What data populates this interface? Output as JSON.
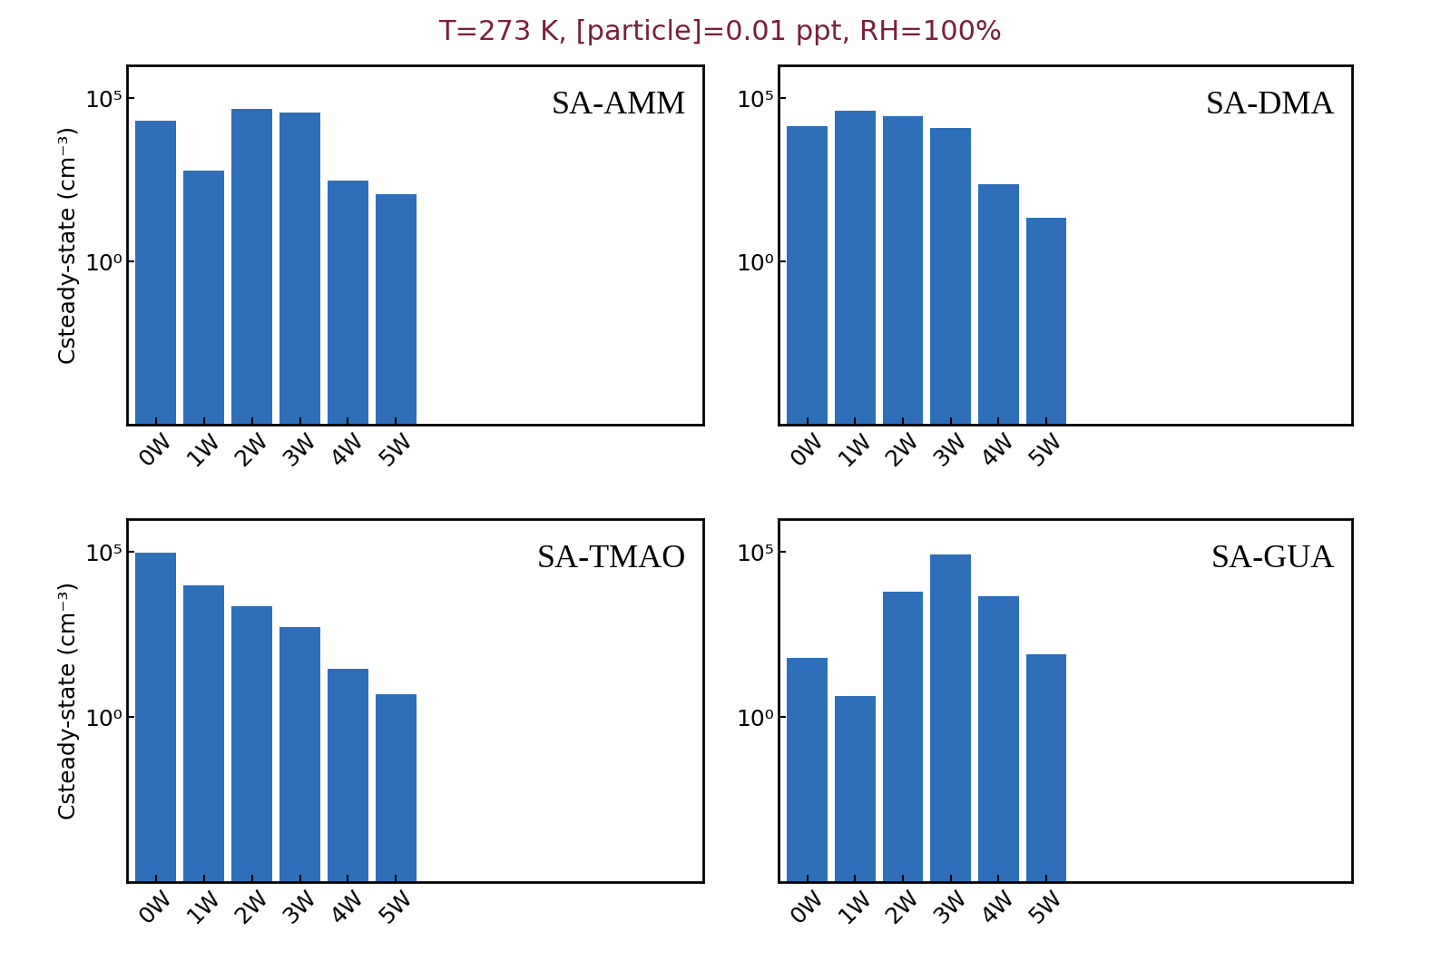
{
  "title": "T=273 K, [particle]=0.01 ppt, RH=100%",
  "chart_data": [
    {
      "type": "bar",
      "title": "SA-AMM",
      "y_label": "Csteady-state (cm⁻³)",
      "categories": [
        "0W",
        "1W",
        "2W",
        "3W",
        "4W",
        "5W"
      ],
      "values": [
        20000,
        600,
        47000,
        36000,
        300,
        115
      ],
      "color": "#2f6fba",
      "log": "y",
      "ylim": [
        1e-05,
        1000000
      ],
      "yticks": [
        {
          "value": 1,
          "label": "10⁰"
        },
        {
          "value": 100000,
          "label": "10⁵"
        }
      ]
    },
    {
      "type": "bar",
      "title": "SA-DMA",
      "categories": [
        "0W",
        "1W",
        "2W",
        "3W",
        "4W",
        "5W"
      ],
      "values": [
        14000,
        41000,
        28000,
        12000,
        230,
        22
      ],
      "color": "#2f6fba",
      "log": "y",
      "ylim": [
        1e-05,
        1000000
      ],
      "yticks": [
        {
          "value": 1,
          "label": "10⁰"
        },
        {
          "value": 100000,
          "label": "10⁵"
        }
      ]
    },
    {
      "type": "bar",
      "title": "SA-TMAO",
      "y_label": "Csteady-state (cm⁻³)",
      "categories": [
        "0W",
        "1W",
        "2W",
        "3W",
        "4W",
        "5W"
      ],
      "values": [
        94000,
        10000,
        2300,
        540,
        29,
        4.9
      ],
      "color": "#2f6fba",
      "log": "y",
      "ylim": [
        1e-05,
        1000000
      ],
      "yticks": [
        {
          "value": 1,
          "label": "10⁰"
        },
        {
          "value": 100000,
          "label": "10⁵"
        }
      ]
    },
    {
      "type": "bar",
      "title": "SA-GUA",
      "categories": [
        "0W",
        "1W",
        "2W",
        "3W",
        "4W",
        "5W"
      ],
      "values": [
        63,
        4.3,
        6500,
        83000,
        4700,
        81
      ],
      "color": "#2f6fba",
      "log": "y",
      "ylim": [
        1e-05,
        1000000
      ],
      "yticks": [
        {
          "value": 1,
          "label": "10⁰"
        },
        {
          "value": 100000,
          "label": "10⁵"
        }
      ]
    }
  ]
}
